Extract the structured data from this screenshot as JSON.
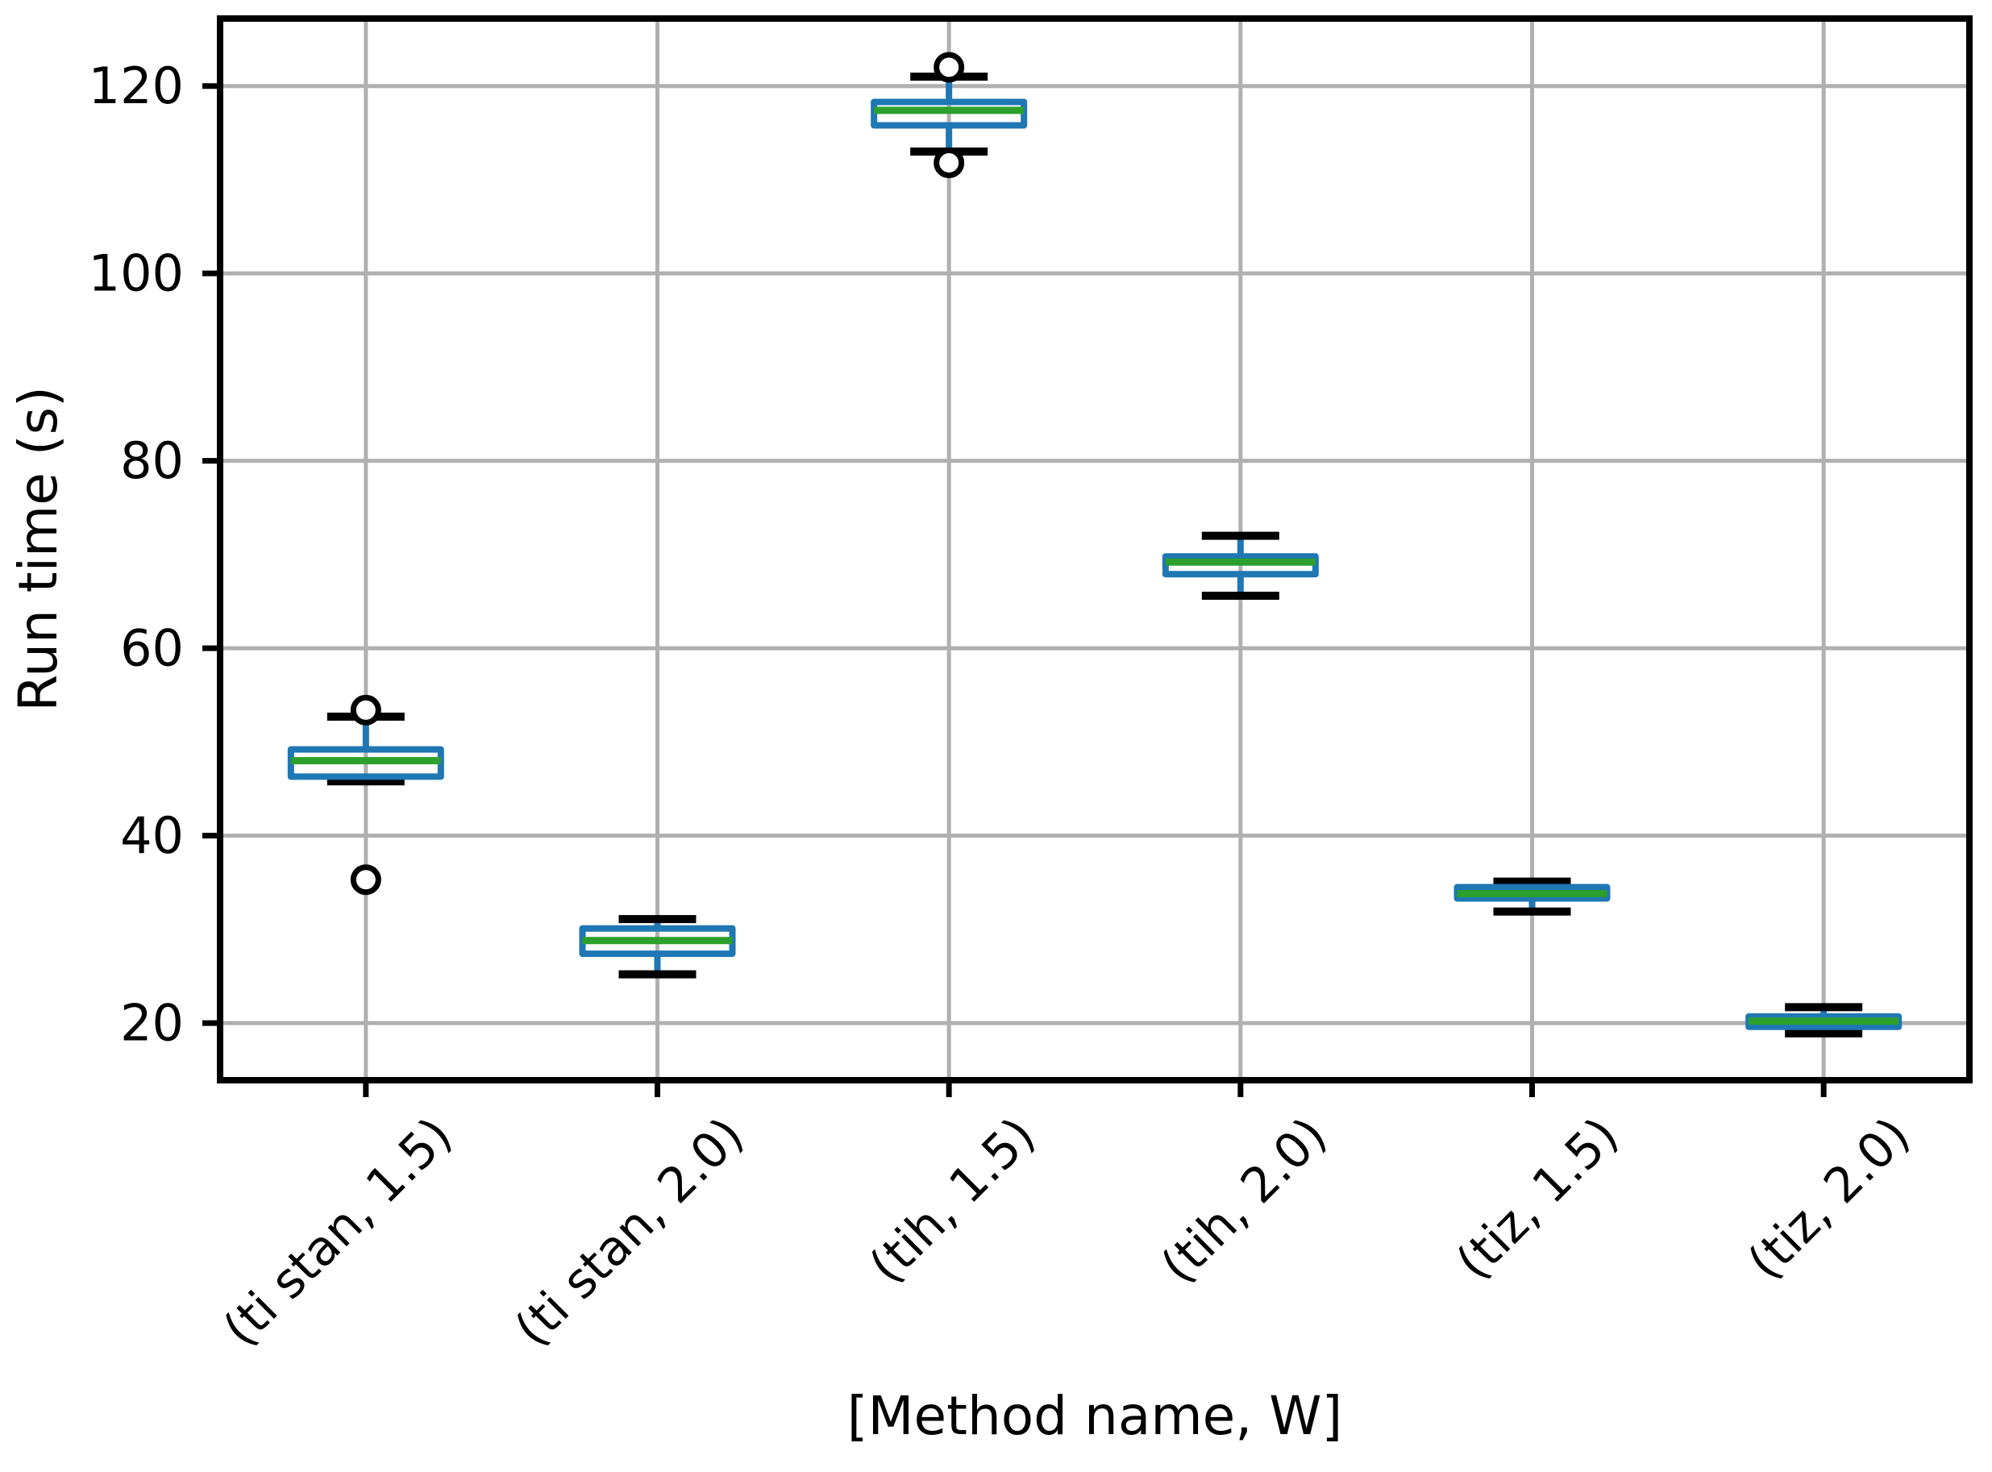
{
  "chart_data": {
    "type": "boxplot",
    "title": "",
    "xlabel": "[Method name, W]",
    "ylabel": "Run time (s)",
    "categories": [
      "(ti stan, 1.5)",
      "(ti stan, 2.0)",
      "(tih, 1.5)",
      "(tih, 2.0)",
      "(tiz, 1.5)",
      "(tiz, 2.0)"
    ],
    "boxes": [
      {
        "label": "(ti stan, 1.5)",
        "whislo": 45.8,
        "q1": 46.3,
        "med": 48.0,
        "q3": 49.2,
        "whishi": 52.7,
        "fliers": [
          53.4,
          35.3
        ]
      },
      {
        "label": "(ti stan, 2.0)",
        "whislo": 25.2,
        "q1": 27.4,
        "med": 28.8,
        "q3": 30.1,
        "whishi": 31.1,
        "fliers": []
      },
      {
        "label": "(tih, 1.5)",
        "whislo": 113.0,
        "q1": 115.8,
        "med": 117.4,
        "q3": 118.3,
        "whishi": 121.0,
        "fliers": [
          122.0,
          111.8
        ]
      },
      {
        "label": "(tih, 2.0)",
        "whislo": 65.6,
        "q1": 67.9,
        "med": 69.2,
        "q3": 69.8,
        "whishi": 72.0,
        "fliers": []
      },
      {
        "label": "(tiz, 1.5)",
        "whislo": 31.9,
        "q1": 33.3,
        "med": 33.8,
        "q3": 34.5,
        "whishi": 35.1,
        "fliers": []
      },
      {
        "label": "(tiz, 2.0)",
        "whislo": 18.9,
        "q1": 19.6,
        "med": 20.2,
        "q3": 20.7,
        "whishi": 21.7,
        "fliers": []
      }
    ],
    "y_ticks": [
      20,
      40,
      60,
      80,
      100,
      120
    ],
    "ylim": [
      13.9,
      127.2
    ],
    "xlim_units": [
      0.5,
      6.5
    ],
    "grid": true,
    "legend": "none",
    "colors": {
      "box": "#1f77b4",
      "median": "#2ca02c",
      "whisker": "#1f77b4",
      "cap": "#000000",
      "flier_edge": "#000000",
      "flier_fill": "#ffffff",
      "grid": "#b0b0b0",
      "axis": "#000000",
      "text": "#000000",
      "background": "#ffffff"
    }
  }
}
